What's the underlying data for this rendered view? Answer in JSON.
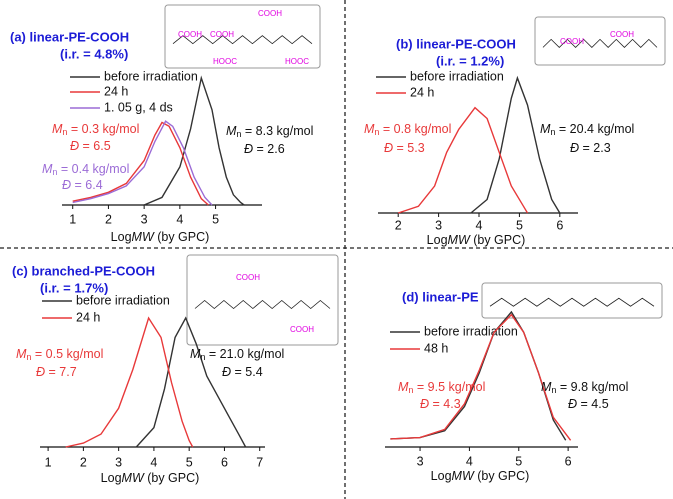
{
  "chart_data": [
    {
      "type": "line",
      "title": "(a) linear-PE-COOH",
      "subtitle": "(i.r. = 4.8%)",
      "x_label": "LogMW (by GPC)",
      "xlim": [
        0.7,
        6.3
      ],
      "ylim": [
        0,
        1
      ],
      "xticks": [
        1,
        2,
        3,
        4,
        5
      ],
      "structure_labels": [
        "COOH",
        "COOH",
        "COOH",
        "HOOC",
        "HOOC"
      ],
      "series": [
        {
          "name": "before irradiation",
          "color": "#333333",
          "x": [
            3.0,
            3.5,
            4.0,
            4.3,
            4.6,
            4.9,
            5.1,
            5.3,
            5.5,
            5.7,
            5.8
          ],
          "values": [
            0,
            0.06,
            0.3,
            0.6,
            1.0,
            0.75,
            0.45,
            0.22,
            0.08,
            0.02,
            0
          ]
        },
        {
          "name": "24 h",
          "color": "#e8393a",
          "x": [
            1.0,
            1.5,
            2.0,
            2.5,
            3.0,
            3.3,
            3.5,
            3.7,
            4.0,
            4.3,
            4.6,
            4.8
          ],
          "values": [
            0.03,
            0.06,
            0.1,
            0.17,
            0.35,
            0.55,
            0.65,
            0.62,
            0.45,
            0.22,
            0.05,
            0
          ]
        },
        {
          "name": "1. 05 g, 4 ds",
          "color": "#9b6bd6",
          "x": [
            1.0,
            1.5,
            2.0,
            2.5,
            3.0,
            3.3,
            3.6,
            3.8,
            4.1,
            4.4,
            4.7,
            4.9
          ],
          "values": [
            0.02,
            0.05,
            0.09,
            0.15,
            0.3,
            0.5,
            0.66,
            0.62,
            0.45,
            0.22,
            0.06,
            0
          ]
        }
      ],
      "annotations": [
        {
          "text": "Mn = 0.3 kg/mol",
          "color": "#e8393a"
        },
        {
          "text": "Đ = 6.5",
          "color": "#e8393a"
        },
        {
          "text": "Mn = 0.4 kg/mol",
          "color": "#9b6bd6"
        },
        {
          "text": "Đ = 6.4",
          "color": "#9b6bd6"
        },
        {
          "text": "Mn = 8.3 kg/mol",
          "color": "#111111"
        },
        {
          "text": "Đ = 2.6",
          "color": "#111111"
        }
      ]
    },
    {
      "type": "line",
      "title": "(b) linear-PE-COOH",
      "subtitle": "(i.r. = 1.2%)",
      "x_label": "LogMW (by GPC)",
      "xlim": [
        1.5,
        6.45
      ],
      "ylim": [
        0,
        1
      ],
      "xticks": [
        2,
        3,
        4,
        5,
        6
      ],
      "structure_labels": [
        "COOH",
        "COOH"
      ],
      "series": [
        {
          "name": "before irradiation",
          "color": "#333333",
          "x": [
            3.8,
            4.2,
            4.5,
            4.8,
            4.95,
            5.2,
            5.5,
            5.8,
            6.0
          ],
          "values": [
            0,
            0.1,
            0.4,
            0.85,
            1.0,
            0.8,
            0.4,
            0.1,
            0
          ]
        },
        {
          "name": "24 h",
          "color": "#e8393a",
          "x": [
            2.0,
            2.5,
            2.9,
            3.2,
            3.5,
            3.9,
            4.2,
            4.5,
            4.8,
            5.1,
            5.2
          ],
          "values": [
            0,
            0.05,
            0.2,
            0.45,
            0.62,
            0.78,
            0.7,
            0.45,
            0.2,
            0.05,
            0
          ]
        }
      ],
      "annotations": [
        {
          "text": "Mn = 0.8 kg/mol",
          "color": "#e8393a"
        },
        {
          "text": "Đ = 5.3",
          "color": "#e8393a"
        },
        {
          "text": "Mn = 20.4 kg/mol",
          "color": "#111111"
        },
        {
          "text": "Đ = 2.3",
          "color": "#111111"
        }
      ]
    },
    {
      "type": "line",
      "title": "(c) branched-PE-COOH",
      "subtitle": "(i.r. = 1.7%)",
      "x_label": "LogMW (by GPC)",
      "xlim": [
        0.77,
        7.15
      ],
      "ylim": [
        0,
        1
      ],
      "xticks": [
        1,
        2,
        3,
        4,
        5,
        6,
        7
      ],
      "structure_labels": [
        "COOH",
        "COOH"
      ],
      "series": [
        {
          "name": "before irradiation",
          "color": "#333333",
          "x": [
            3.5,
            4.0,
            4.3,
            4.6,
            4.9,
            5.2,
            5.5,
            5.8,
            6.1,
            6.4,
            6.6
          ],
          "values": [
            0,
            0.15,
            0.45,
            0.85,
            1.0,
            0.8,
            0.55,
            0.4,
            0.25,
            0.1,
            0
          ]
        },
        {
          "name": "24 h",
          "color": "#e8393a",
          "x": [
            1.5,
            2.0,
            2.5,
            3.0,
            3.4,
            3.85,
            4.2,
            4.5,
            4.8,
            5.0,
            5.1
          ],
          "values": [
            0,
            0.03,
            0.1,
            0.3,
            0.6,
            1.0,
            0.85,
            0.5,
            0.2,
            0.05,
            0
          ]
        }
      ],
      "annotations": [
        {
          "text": "Mn = 0.5 kg/mol",
          "color": "#e8393a"
        },
        {
          "text": "Đ = 7.7",
          "color": "#e8393a"
        },
        {
          "text": "Mn = 21.0 kg/mol",
          "color": "#111111"
        },
        {
          "text": "Đ = 5.4",
          "color": "#111111"
        }
      ]
    },
    {
      "type": "line",
      "title": "(d) linear-PE",
      "x_label": "LogMW (by GPC)",
      "xlim": [
        2.29,
        6.2
      ],
      "ylim": [
        0,
        1
      ],
      "xticks": [
        3,
        4,
        5,
        6
      ],
      "series": [
        {
          "name": "before irradiation",
          "color": "#333333",
          "x": [
            2.4,
            3.0,
            3.5,
            3.9,
            4.2,
            4.5,
            4.85,
            5.1,
            5.4,
            5.7,
            5.95
          ],
          "values": [
            0.06,
            0.07,
            0.12,
            0.3,
            0.55,
            0.85,
            1.0,
            0.85,
            0.55,
            0.2,
            0.05
          ]
        },
        {
          "name": "48 h",
          "color": "#e8393a",
          "x": [
            2.4,
            3.0,
            3.5,
            3.9,
            4.2,
            4.5,
            4.85,
            5.1,
            5.4,
            5.7,
            6.05
          ],
          "values": [
            0.06,
            0.07,
            0.13,
            0.32,
            0.57,
            0.85,
            0.98,
            0.85,
            0.55,
            0.22,
            0.05
          ]
        }
      ],
      "annotations": [
        {
          "text": "Mn = 9.5 kg/mol",
          "color": "#e8393a"
        },
        {
          "text": "Đ = 4.3",
          "color": "#e8393a"
        },
        {
          "text": "Mn = 9.8 kg/mol",
          "color": "#111111"
        },
        {
          "text": "Đ = 4.5",
          "color": "#111111"
        }
      ]
    }
  ]
}
